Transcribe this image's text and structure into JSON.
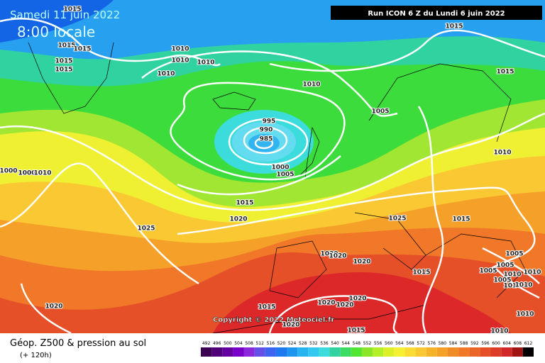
{
  "header": {
    "date": "Samedi 11 juin 2022",
    "time": "8:00 locale",
    "run": "Run ICON 6 Z du Lundi 6 juin 2022"
  },
  "footer": {
    "title": "Géop. Z500 & pression au sol",
    "lead": "(+ 120h)",
    "copyright": "Copyright © 2022 Meteociel.fr"
  },
  "colorbar": {
    "labels": [
      "492",
      "496",
      "500",
      "504",
      "508",
      "512",
      "516",
      "520",
      "524",
      "528",
      "532",
      "536",
      "540",
      "544",
      "548",
      "552",
      "556",
      "560",
      "564",
      "568",
      "572",
      "576",
      "580",
      "584",
      "588",
      "592",
      "596",
      "600",
      "604",
      "608",
      "612"
    ],
    "colors": [
      "#3c0050",
      "#500078",
      "#6400a0",
      "#7800c8",
      "#8c28dc",
      "#6450e6",
      "#3c64f0",
      "#1e78f0",
      "#1e96f0",
      "#28b4f0",
      "#32c8f0",
      "#3cdcdc",
      "#32d2a0",
      "#3cdc64",
      "#50e632",
      "#8ce628",
      "#b4f028",
      "#dcf028",
      "#f5f032",
      "#fadc32",
      "#fac832",
      "#f5b428",
      "#f5a028",
      "#f08c28",
      "#f07828",
      "#eb6428",
      "#e65028",
      "#dc3c28",
      "#d22828",
      "#a01414",
      "#000000"
    ]
  },
  "isobar_labels": [
    "1015",
    "1015",
    "1015",
    "1015",
    "1015",
    "1015",
    "1010",
    "1010",
    "1010",
    "1010",
    "1010",
    "1015",
    "1005",
    "995",
    "990",
    "985",
    "1000",
    "1005",
    "1010",
    "1000",
    "1000",
    "1010",
    "1015",
    "1020",
    "1025",
    "1015",
    "1025",
    "1020",
    "1020",
    "1020",
    "1005",
    "1005",
    "1005",
    "1010",
    "1010",
    "1015",
    "1005",
    "1010",
    "1010",
    "1020",
    "1015",
    "1020",
    "1020",
    "1020",
    "1010",
    "1020",
    "1015",
    "1010"
  ]
}
